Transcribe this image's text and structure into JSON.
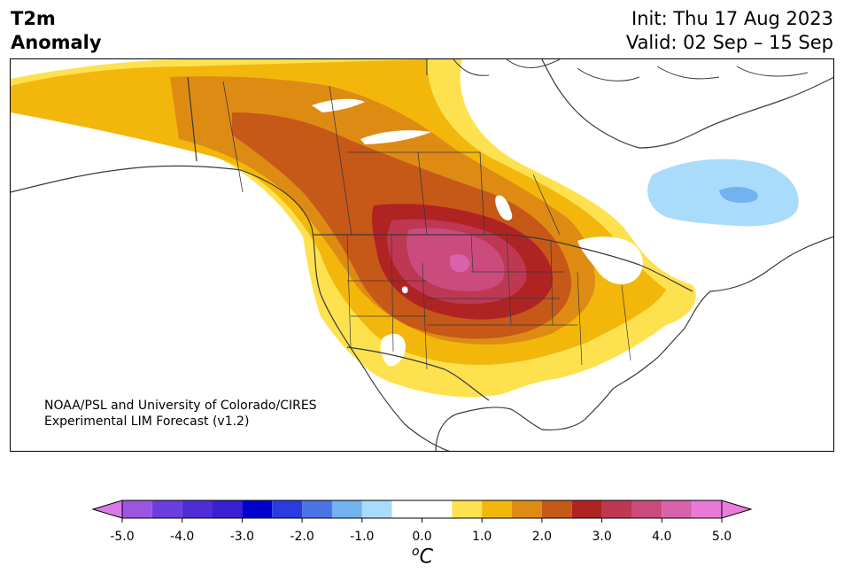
{
  "header": {
    "title_line1": "T2m",
    "title_line2": "Anomaly",
    "init": "Init: Thu 17 Aug 2023",
    "valid": "Valid: 02 Sep – 15 Sep"
  },
  "map": {
    "credit_line1": "NOAA/PSL and University of Colorado/CIRES",
    "credit_line2": "Experimental LIM Forecast (v1.2)",
    "region": "North America",
    "anomaly_max_region": "Northern Plains (positive, ~4-5 °C)",
    "anomaly_min_region": "Eastern Canada / Quebec (negative, ~-1 to -1.5 °C)"
  },
  "colorbar": {
    "units_base": "C",
    "units_sup": "o",
    "ticks": [
      "-5.0",
      "-4.0",
      "-3.0",
      "-2.0",
      "-1.0",
      "0.0",
      "1.0",
      "2.0",
      "3.0",
      "4.0",
      "5.0"
    ],
    "bins": [
      {
        "min": -5.0,
        "max": -4.5,
        "color": "#9b55e0"
      },
      {
        "min": -4.5,
        "max": -4.0,
        "color": "#6a3ede"
      },
      {
        "min": -4.0,
        "max": -3.5,
        "color": "#4f2dd6"
      },
      {
        "min": -3.5,
        "max": -3.0,
        "color": "#3820d2"
      },
      {
        "min": -3.0,
        "max": -2.5,
        "color": "#0000cd"
      },
      {
        "min": -2.5,
        "max": -2.0,
        "color": "#2a3bdf"
      },
      {
        "min": -2.0,
        "max": -1.5,
        "color": "#4a74e6"
      },
      {
        "min": -1.5,
        "max": -1.0,
        "color": "#72b2f0"
      },
      {
        "min": -1.0,
        "max": -0.5,
        "color": "#a9dcfa"
      },
      {
        "min": -0.5,
        "max": 0.5,
        "color": "#ffffff"
      },
      {
        "min": 0.5,
        "max": 1.0,
        "color": "#fde14f"
      },
      {
        "min": 1.0,
        "max": 1.5,
        "color": "#f3b70c"
      },
      {
        "min": 1.5,
        "max": 2.0,
        "color": "#de8b14"
      },
      {
        "min": 2.0,
        "max": 2.5,
        "color": "#c65818"
      },
      {
        "min": 2.5,
        "max": 3.0,
        "color": "#b02323"
      },
      {
        "min": 3.0,
        "max": 3.5,
        "color": "#be3854"
      },
      {
        "min": 3.5,
        "max": 4.0,
        "color": "#cb4b7d"
      },
      {
        "min": 4.0,
        "max": 4.5,
        "color": "#d962ac"
      },
      {
        "min": 4.5,
        "max": 5.0,
        "color": "#e879d5"
      }
    ],
    "under_color": "#d77ae8",
    "over_color": "#e97cdc"
  }
}
